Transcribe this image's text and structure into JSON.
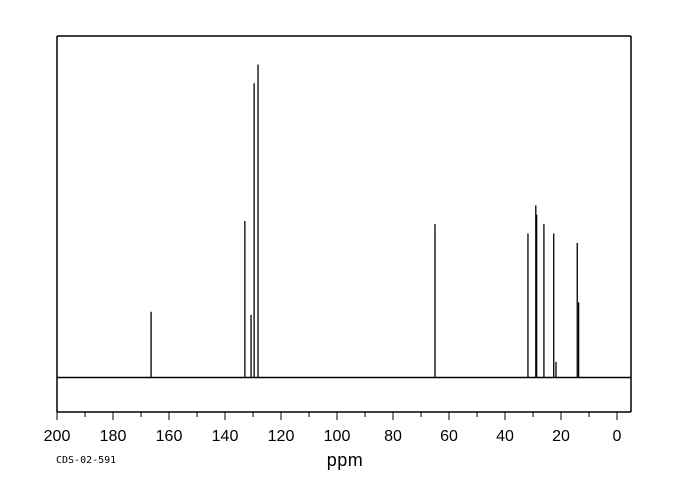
{
  "page": {
    "background_color": "#ffffff",
    "line_color": "#000000"
  },
  "footer": {
    "sample_id": "CDS-02-591",
    "axis_unit": "ppm"
  },
  "chart_data": {
    "type": "line",
    "subtype": "13C-NMR-spectrum",
    "title": "",
    "xlabel": "ppm",
    "ylabel": "",
    "grid": false,
    "legend": false,
    "x_axis": {
      "min": 0,
      "max": 200,
      "reversed": true,
      "major_tick_step": 20,
      "minor_tick_step": 10,
      "tick_labels": [
        "200",
        "180",
        "160",
        "140",
        "120",
        "100",
        "80",
        "60",
        "40",
        "20",
        "0"
      ]
    },
    "y_axis": {
      "visible": false
    },
    "annotations": [
      "CDS-02-591"
    ],
    "peaks": [
      {
        "ppm": 166.4,
        "rel_height": 0.21
      },
      {
        "ppm": 132.9,
        "rel_height": 0.5
      },
      {
        "ppm": 130.7,
        "rel_height": 0.2
      },
      {
        "ppm": 129.6,
        "rel_height": 0.94
      },
      {
        "ppm": 128.2,
        "rel_height": 1.0
      },
      {
        "ppm": 65.0,
        "rel_height": 0.49
      },
      {
        "ppm": 31.8,
        "rel_height": 0.46
      },
      {
        "ppm": 29.0,
        "rel_height": 0.55
      },
      {
        "ppm": 28.7,
        "rel_height": 0.52
      },
      {
        "ppm": 26.1,
        "rel_height": 0.49
      },
      {
        "ppm": 22.6,
        "rel_height": 0.46
      },
      {
        "ppm": 21.8,
        "rel_height": 0.05
      },
      {
        "ppm": 14.2,
        "rel_height": 0.43
      },
      {
        "ppm": 13.7,
        "rel_height": 0.24
      }
    ]
  }
}
